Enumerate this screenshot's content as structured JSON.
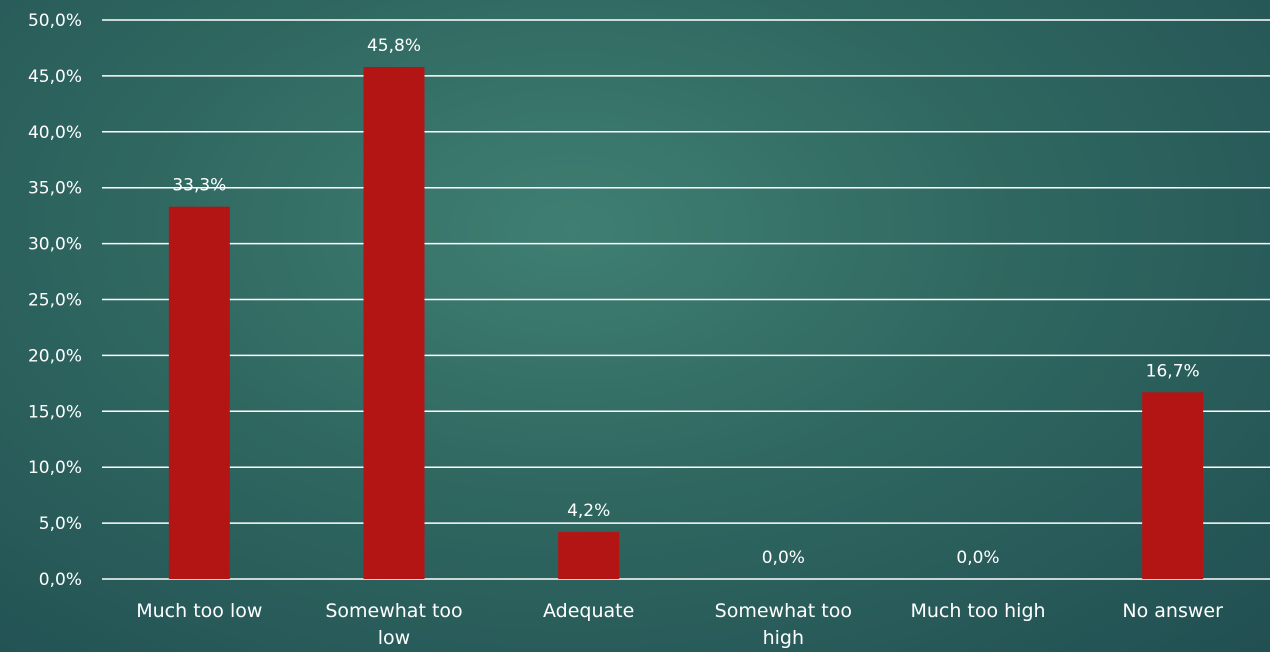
{
  "chart_data": {
    "type": "bar",
    "categories": [
      "Much too low",
      "Somewhat too low",
      "Adequate",
      "Somewhat too high",
      "Much too high",
      "No answer"
    ],
    "category_lines": [
      [
        "Much too low"
      ],
      [
        "Somewhat too",
        "low"
      ],
      [
        "Adequate"
      ],
      [
        "Somewhat too",
        "high"
      ],
      [
        "Much too high"
      ],
      [
        "No answer"
      ]
    ],
    "values": [
      33.3,
      45.8,
      4.2,
      0.0,
      0.0,
      16.7
    ],
    "data_labels": [
      "33,3%",
      "45,8%",
      "4,2%",
      "0,0%",
      "0,0%",
      "16,7%"
    ],
    "yticks": [
      "0,0%",
      "5,0%",
      "10,0%",
      "15,0%",
      "20,0%",
      "25,0%",
      "30,0%",
      "35,0%",
      "40,0%",
      "45,0%",
      "50,0%"
    ],
    "ylim": [
      0,
      50
    ],
    "ystep": 5,
    "grid": true,
    "legend": "none",
    "bar_color": "#b31515",
    "title": "",
    "xlabel": "",
    "ylabel": ""
  }
}
